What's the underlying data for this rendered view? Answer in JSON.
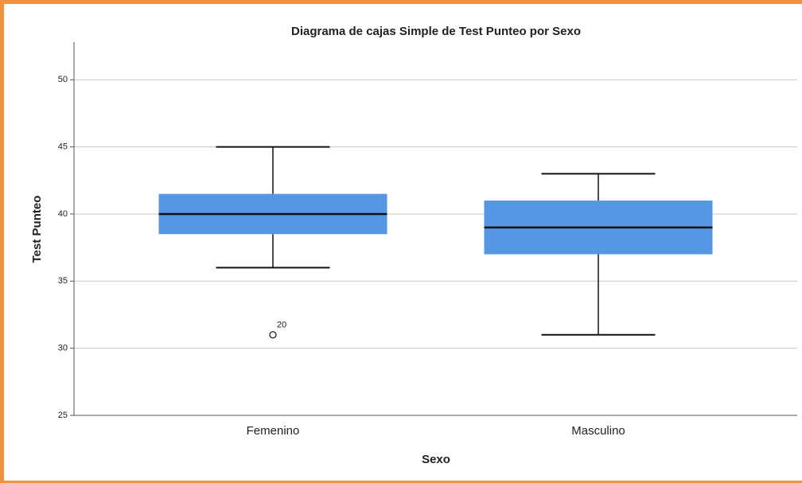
{
  "chart_data": {
    "type": "boxplot",
    "title": "Diagrama de cajas Simple de Test Punteo por Sexo",
    "x_label": "Sexo",
    "y_label": "Test Punteo",
    "categories": [
      "Femenino",
      "Masculino"
    ],
    "color": "#5597e3",
    "boxes": [
      {
        "whisker_low": 36,
        "q1": 38.5,
        "median": 40,
        "q3": 41.5,
        "whisker_high": 45,
        "outliers": [
          {
            "value": 31,
            "label": "20"
          }
        ]
      },
      {
        "whisker_low": 31,
        "q1": 37,
        "median": 39,
        "q3": 41,
        "whisker_high": 43,
        "outliers": []
      }
    ],
    "ylim": [
      25,
      52.8
    ],
    "yticks": [
      25,
      30,
      35,
      40,
      45,
      50
    ],
    "grid": true
  }
}
